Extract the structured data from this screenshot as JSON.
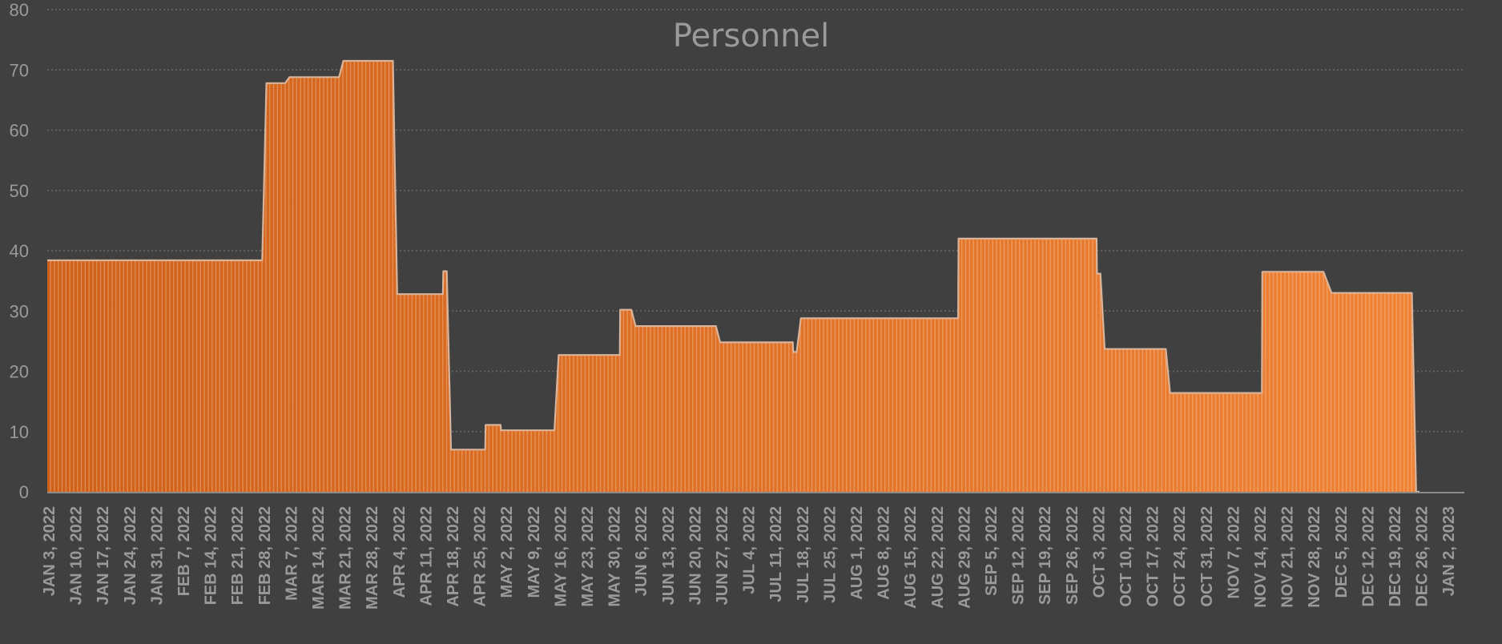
{
  "chart_data": {
    "type": "area",
    "title": "Personnel",
    "xlabel": "",
    "ylabel": "",
    "ylim": [
      0,
      80
    ],
    "yticks": [
      0,
      10,
      20,
      30,
      40,
      50,
      60,
      70,
      80
    ],
    "grid": true,
    "legend": null,
    "x_granularity": "daily",
    "x_start": "JAN 3, 2022",
    "x_tick_labels": [
      "JAN 3, 2022",
      "JAN 10, 2022",
      "JAN 17, 2022",
      "JAN 24, 2022",
      "JAN 31, 2022",
      "FEB 7, 2022",
      "FEB 14, 2022",
      "FEB 21, 2022",
      "FEB 28, 2022",
      "MAR 7, 2022",
      "MAR 14, 2022",
      "MAR 21, 2022",
      "MAR 28, 2022",
      "APR 4, 2022",
      "APR 11, 2022",
      "APR 18, 2022",
      "APR 25, 2022",
      "MAY 2, 2022",
      "MAY 9, 2022",
      "MAY 16, 2022",
      "MAY 23, 2022",
      "MAY 30, 2022",
      "JUN 6, 2022",
      "JUN 13, 2022",
      "JUN 20, 2022",
      "JUN 27, 2022",
      "JUL 4, 2022",
      "JUL 11, 2022",
      "JUL 18, 2022",
      "JUL 25, 2022",
      "AUG 1, 2022",
      "AUG 8, 2022",
      "AUG 15, 2022",
      "AUG 22, 2022",
      "AUG 29, 2022",
      "SEP 5, 2022",
      "SEP 12, 2022",
      "SEP 19, 2022",
      "SEP 26, 2022",
      "OCT 3, 2022",
      "OCT 10, 2022",
      "OCT 17, 2022",
      "OCT 24, 2022",
      "OCT 31, 2022",
      "NOV 7, 2022",
      "NOV 14, 2022",
      "NOV 21, 2022",
      "NOV 28, 2022",
      "DEC 5, 2022",
      "DEC 12, 2022",
      "DEC 19, 2022",
      "DEC 26, 2022",
      "JAN 2, 2023"
    ],
    "series": [
      {
        "name": "Personnel",
        "segments_day_index": [
          {
            "from": 0,
            "to": 55,
            "value": 38.4
          },
          {
            "from": 57,
            "to": 61,
            "value": 67.8
          },
          {
            "from": 63,
            "to": 75,
            "value": 68.8
          },
          {
            "from": 77,
            "to": 89,
            "value": 71.5
          },
          {
            "from": 91,
            "to": 102,
            "value": 32.8
          },
          {
            "from": 103,
            "to": 103,
            "value": 36.6
          },
          {
            "from": 105,
            "to": 113,
            "value": 7.0
          },
          {
            "from": 114,
            "to": 117,
            "value": 11.1
          },
          {
            "from": 118,
            "to": 131,
            "value": 10.2
          },
          {
            "from": 133,
            "to": 148,
            "value": 22.7
          },
          {
            "from": 149,
            "to": 151,
            "value": 30.2
          },
          {
            "from": 153,
            "to": 173,
            "value": 27.5
          },
          {
            "from": 175,
            "to": 193,
            "value": 24.8
          },
          {
            "from": 194,
            "to": 194,
            "value": 23.2
          },
          {
            "from": 196,
            "to": 236,
            "value": 28.8
          },
          {
            "from": 237,
            "to": 272,
            "value": 42.0
          },
          {
            "from": 273,
            "to": 273,
            "value": 36.2
          },
          {
            "from": 275,
            "to": 290,
            "value": 23.7
          },
          {
            "from": 292,
            "to": 315,
            "value": 16.4
          },
          {
            "from": 316,
            "to": 331,
            "value": 36.5
          },
          {
            "from": 334,
            "to": 354,
            "value": 33.0
          },
          {
            "from": 356,
            "to": 356,
            "value": 0
          }
        ]
      }
    ],
    "colors": {
      "fill_start": "#cf601a",
      "fill_end": "#ef8235",
      "outline": "#d9b49a",
      "background": "#404040",
      "gridline": "#6a6a6a",
      "axis_text": "#9a9a9a",
      "axis_line": "#8a8a8a"
    }
  }
}
